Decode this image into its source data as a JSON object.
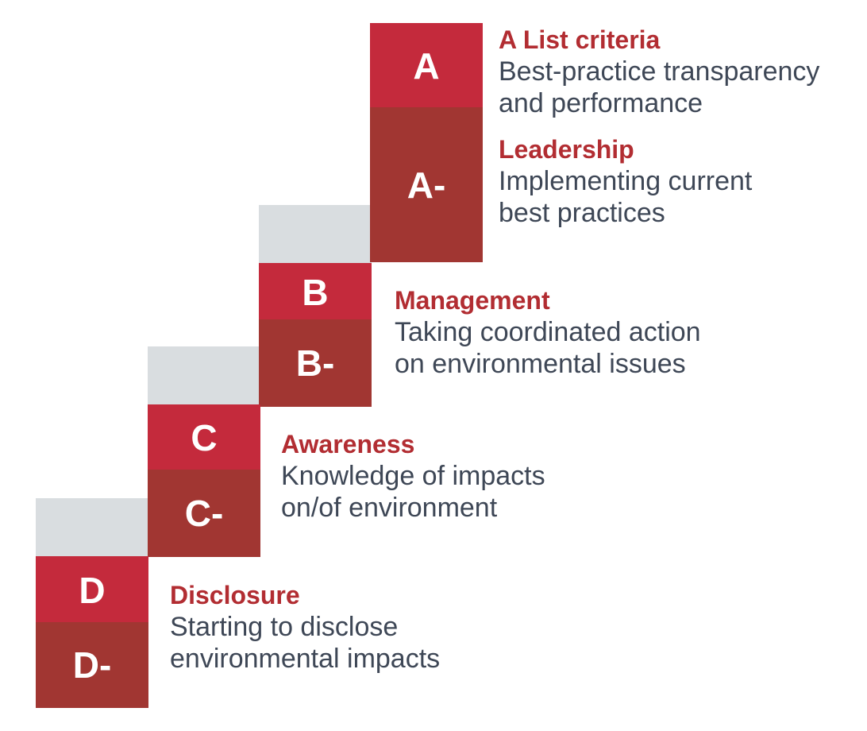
{
  "steps": [
    {
      "grades": [
        "A",
        "A-"
      ],
      "labels": [
        {
          "title": "A List criteria",
          "lines": [
            "Best-practice transparency",
            "and performance"
          ]
        },
        {
          "title": "Leadership",
          "lines": [
            "Implementing current",
            "best practices"
          ]
        }
      ]
    },
    {
      "grades": [
        "B",
        "B-"
      ],
      "labels": [
        {
          "title": "Management",
          "lines": [
            "Taking coordinated action",
            "on environmental issues"
          ]
        }
      ]
    },
    {
      "grades": [
        "C",
        "C-"
      ],
      "labels": [
        {
          "title": "Awareness",
          "lines": [
            "Knowledge of impacts",
            "on/of environment"
          ]
        }
      ]
    },
    {
      "grades": [
        "D",
        "D-"
      ],
      "labels": [
        {
          "title": "Disclosure",
          "lines": [
            "Starting to disclose",
            "environmental impacts"
          ]
        }
      ]
    }
  ],
  "colors": {
    "grade_upper": "#c42a3c",
    "grade_lower": "#a13632",
    "riser": "#d9dde0",
    "title_text": "#b22d32",
    "body_text": "#3e4756"
  }
}
